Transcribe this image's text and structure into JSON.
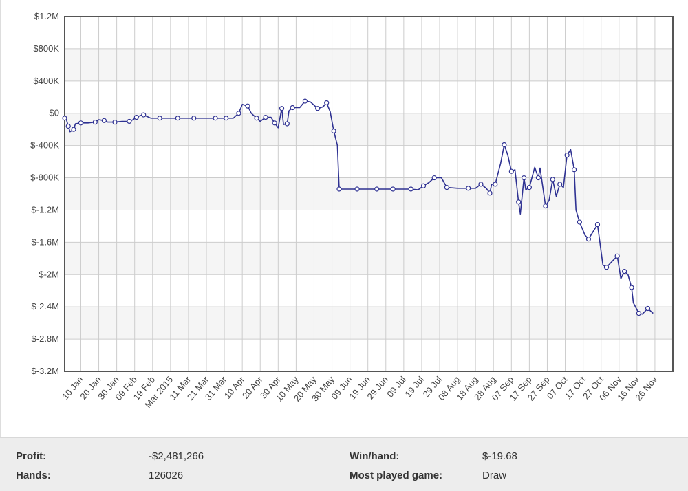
{
  "chart_data": {
    "type": "line",
    "title": "",
    "xlabel": "",
    "ylabel": "",
    "grid": true,
    "colors": {
      "line": "#2e3192",
      "marker_fill": "#ffffff",
      "band": "#f5f5f5",
      "grid": "#cccccc",
      "axis": "#555555"
    },
    "ylim": [
      -3200000,
      1200000
    ],
    "y_ticks": [
      {
        "value": 1200000,
        "label": "$1.2M"
      },
      {
        "value": 800000,
        "label": "$800K"
      },
      {
        "value": 400000,
        "label": "$400K"
      },
      {
        "value": 0,
        "label": "$0"
      },
      {
        "value": -400000,
        "label": "$-400K"
      },
      {
        "value": -800000,
        "label": "$-800K"
      },
      {
        "value": -1200000,
        "label": "$-1.2M"
      },
      {
        "value": -1600000,
        "label": "$-1.6M"
      },
      {
        "value": -2000000,
        "label": "$-2M"
      },
      {
        "value": -2400000,
        "label": "$-2.4M"
      },
      {
        "value": -2800000,
        "label": "$-2.8M"
      },
      {
        "value": -3200000,
        "label": "$-3.2M"
      }
    ],
    "xlim": [
      "2015-01-01",
      "2015-12-06"
    ],
    "x_ticks": [
      {
        "date": "2015-01-10",
        "label": "10 Jan"
      },
      {
        "date": "2015-01-20",
        "label": "20 Jan"
      },
      {
        "date": "2015-01-30",
        "label": "30 Jan"
      },
      {
        "date": "2015-02-09",
        "label": "09 Feb"
      },
      {
        "date": "2015-02-19",
        "label": "19 Feb"
      },
      {
        "date": "2015-03-01",
        "label": "Mar 2015"
      },
      {
        "date": "2015-03-11",
        "label": "11 Mar"
      },
      {
        "date": "2015-03-21",
        "label": "21 Mar"
      },
      {
        "date": "2015-03-31",
        "label": "31 Mar"
      },
      {
        "date": "2015-04-10",
        "label": "10 Apr"
      },
      {
        "date": "2015-04-20",
        "label": "20 Apr"
      },
      {
        "date": "2015-04-30",
        "label": "30 Apr"
      },
      {
        "date": "2015-05-10",
        "label": "10 May"
      },
      {
        "date": "2015-05-20",
        "label": "20 May"
      },
      {
        "date": "2015-05-30",
        "label": "30 May"
      },
      {
        "date": "2015-06-09",
        "label": "09 Jun"
      },
      {
        "date": "2015-06-19",
        "label": "19 Jun"
      },
      {
        "date": "2015-06-29",
        "label": "29 Jun"
      },
      {
        "date": "2015-07-09",
        "label": "09 Jul"
      },
      {
        "date": "2015-07-19",
        "label": "19 Jul"
      },
      {
        "date": "2015-07-29",
        "label": "29 Jul"
      },
      {
        "date": "2015-08-08",
        "label": "08 Aug"
      },
      {
        "date": "2015-08-18",
        "label": "18 Aug"
      },
      {
        "date": "2015-08-28",
        "label": "28 Aug"
      },
      {
        "date": "2015-09-07",
        "label": "07 Sep"
      },
      {
        "date": "2015-09-17",
        "label": "17 Sep"
      },
      {
        "date": "2015-09-27",
        "label": "27 Sep"
      },
      {
        "date": "2015-10-07",
        "label": "07 Oct"
      },
      {
        "date": "2015-10-17",
        "label": "17 Oct"
      },
      {
        "date": "2015-10-27",
        "label": "27 Oct"
      },
      {
        "date": "2015-11-06",
        "label": "06 Nov"
      },
      {
        "date": "2015-11-16",
        "label": "16 Nov"
      },
      {
        "date": "2015-11-26",
        "label": "26 Nov"
      }
    ],
    "series": [
      {
        "name": "",
        "points": [
          [
            "2015-01-01",
            -60000
          ],
          [
            "2015-01-02",
            -80000
          ],
          [
            "2015-01-03",
            -160000
          ],
          [
            "2015-01-04",
            -230000
          ],
          [
            "2015-01-06",
            -200000
          ],
          [
            "2015-01-07",
            -130000
          ],
          [
            "2015-01-10",
            -120000
          ],
          [
            "2015-01-14",
            -120000
          ],
          [
            "2015-01-18",
            -110000
          ],
          [
            "2015-01-20",
            -80000
          ],
          [
            "2015-01-23",
            -90000
          ],
          [
            "2015-01-25",
            -110000
          ],
          [
            "2015-01-29",
            -110000
          ],
          [
            "2015-02-02",
            -100000
          ],
          [
            "2015-02-06",
            -100000
          ],
          [
            "2015-02-08",
            -80000
          ],
          [
            "2015-02-10",
            -50000
          ],
          [
            "2015-02-12",
            -30000
          ],
          [
            "2015-02-14",
            -20000
          ],
          [
            "2015-02-18",
            -60000
          ],
          [
            "2015-02-23",
            -60000
          ],
          [
            "2015-02-28",
            -60000
          ],
          [
            "2015-03-05",
            -60000
          ],
          [
            "2015-03-10",
            -60000
          ],
          [
            "2015-03-14",
            -60000
          ],
          [
            "2015-03-20",
            -60000
          ],
          [
            "2015-03-26",
            -60000
          ],
          [
            "2015-03-30",
            -60000
          ],
          [
            "2015-04-01",
            -60000
          ],
          [
            "2015-04-05",
            -60000
          ],
          [
            "2015-04-08",
            0
          ],
          [
            "2015-04-10",
            110000
          ],
          [
            "2015-04-13",
            90000
          ],
          [
            "2015-04-15",
            0
          ],
          [
            "2015-04-18",
            -60000
          ],
          [
            "2015-04-20",
            -100000
          ],
          [
            "2015-04-23",
            -50000
          ],
          [
            "2015-04-26",
            -50000
          ],
          [
            "2015-04-28",
            -120000
          ],
          [
            "2015-04-30",
            -180000
          ],
          [
            "2015-05-02",
            60000
          ],
          [
            "2015-05-03",
            -140000
          ],
          [
            "2015-05-05",
            -130000
          ],
          [
            "2015-05-06",
            30000
          ],
          [
            "2015-05-08",
            70000
          ],
          [
            "2015-05-12",
            70000
          ],
          [
            "2015-05-15",
            150000
          ],
          [
            "2015-05-18",
            140000
          ],
          [
            "2015-05-22",
            60000
          ],
          [
            "2015-05-25",
            80000
          ],
          [
            "2015-05-27",
            130000
          ],
          [
            "2015-05-29",
            20000
          ],
          [
            "2015-05-31",
            -220000
          ],
          [
            "2015-06-02",
            -400000
          ],
          [
            "2015-06-03",
            -940000
          ],
          [
            "2015-06-08",
            -940000
          ],
          [
            "2015-06-13",
            -940000
          ],
          [
            "2015-06-18",
            -940000
          ],
          [
            "2015-06-24",
            -940000
          ],
          [
            "2015-06-28",
            -940000
          ],
          [
            "2015-07-03",
            -940000
          ],
          [
            "2015-07-09",
            -940000
          ],
          [
            "2015-07-13",
            -940000
          ],
          [
            "2015-07-17",
            -950000
          ],
          [
            "2015-07-20",
            -900000
          ],
          [
            "2015-07-23",
            -860000
          ],
          [
            "2015-07-26",
            -800000
          ],
          [
            "2015-07-30",
            -800000
          ],
          [
            "2015-08-02",
            -920000
          ],
          [
            "2015-08-08",
            -930000
          ],
          [
            "2015-08-14",
            -930000
          ],
          [
            "2015-08-18",
            -930000
          ],
          [
            "2015-08-21",
            -880000
          ],
          [
            "2015-08-24",
            -930000
          ],
          [
            "2015-08-26",
            -990000
          ],
          [
            "2015-08-27",
            -880000
          ],
          [
            "2015-08-29",
            -880000
          ],
          [
            "2015-09-01",
            -620000
          ],
          [
            "2015-09-03",
            -390000
          ],
          [
            "2015-09-05",
            -520000
          ],
          [
            "2015-09-07",
            -720000
          ],
          [
            "2015-09-09",
            -700000
          ],
          [
            "2015-09-11",
            -1100000
          ],
          [
            "2015-09-12",
            -1250000
          ],
          [
            "2015-09-14",
            -800000
          ],
          [
            "2015-09-15",
            -950000
          ],
          [
            "2015-09-17",
            -920000
          ],
          [
            "2015-09-20",
            -670000
          ],
          [
            "2015-09-22",
            -800000
          ],
          [
            "2015-09-23",
            -680000
          ],
          [
            "2015-09-26",
            -1150000
          ],
          [
            "2015-09-28",
            -1080000
          ],
          [
            "2015-09-30",
            -820000
          ],
          [
            "2015-10-02",
            -1030000
          ],
          [
            "2015-10-04",
            -880000
          ],
          [
            "2015-10-06",
            -920000
          ],
          [
            "2015-10-08",
            -520000
          ],
          [
            "2015-10-10",
            -450000
          ],
          [
            "2015-10-12",
            -700000
          ],
          [
            "2015-10-13",
            -1200000
          ],
          [
            "2015-10-15",
            -1350000
          ],
          [
            "2015-10-18",
            -1510000
          ],
          [
            "2015-10-20",
            -1560000
          ],
          [
            "2015-10-23",
            -1450000
          ],
          [
            "2015-10-25",
            -1380000
          ],
          [
            "2015-10-28",
            -1880000
          ],
          [
            "2015-10-30",
            -1910000
          ],
          [
            "2015-11-02",
            -1840000
          ],
          [
            "2015-11-05",
            -1770000
          ],
          [
            "2015-11-07",
            -2050000
          ],
          [
            "2015-11-09",
            -1960000
          ],
          [
            "2015-11-11",
            -2000000
          ],
          [
            "2015-11-13",
            -2160000
          ],
          [
            "2015-11-14",
            -2350000
          ],
          [
            "2015-11-17",
            -2480000
          ],
          [
            "2015-11-19",
            -2490000
          ],
          [
            "2015-11-22",
            -2420000
          ],
          [
            "2015-11-25",
            -2480000
          ]
        ]
      }
    ]
  },
  "stats": {
    "profit_label": "Profit:",
    "profit_value": "-$2,481,266",
    "hands_label": "Hands:",
    "hands_value": "126026",
    "winhand_label": "Win/hand:",
    "winhand_value": "$-19.68",
    "game_label": "Most played game:",
    "game_value": "Draw"
  }
}
